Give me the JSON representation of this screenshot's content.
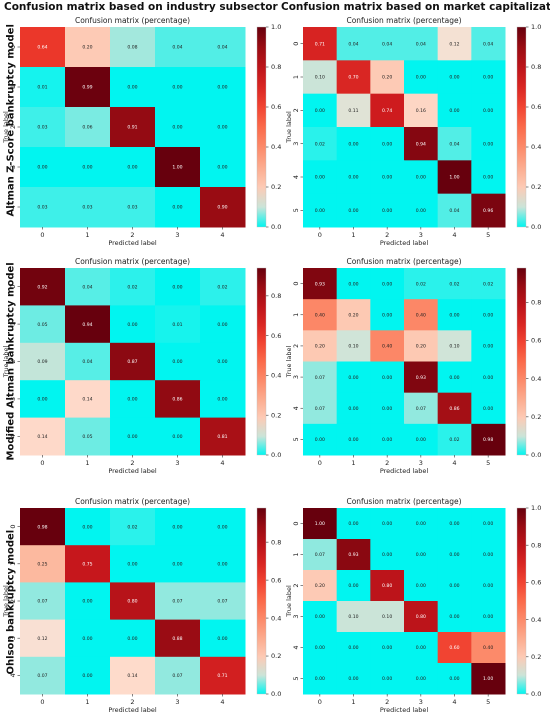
{
  "headers": {
    "left": "Confusion matrix based on industry subsector",
    "right": "Confusion matrix based on market capitalization",
    "rows": [
      "Altman Z-Score bankruptcy model",
      "Modified Altman bankruptcy model",
      "Ohlson bankruptcy model"
    ]
  },
  "chart_data": [
    {
      "type": "heatmap",
      "title": "Confusion matrix (percentage)",
      "xlabel": "Predicted label",
      "ylabel": "True label",
      "labels": [
        "0",
        "1",
        "2",
        "3",
        "4"
      ],
      "colorbar": {
        "vmin": 0,
        "vmax": 1.0,
        "ticks": [
          "0.0",
          "0.2",
          "0.4",
          "0.6",
          "0.8",
          "1.0"
        ]
      },
      "matrix": [
        [
          "0.64",
          "0.20",
          "0.08",
          "0.04",
          "0.04"
        ],
        [
          "0.01",
          "0.99",
          "0.00",
          "0.00",
          "0.00"
        ],
        [
          "0.03",
          "0.06",
          "0.91",
          "0.00",
          "0.00"
        ],
        [
          "0.00",
          "0.00",
          "0.00",
          "1.00",
          "0.00"
        ],
        [
          "0.03",
          "0.03",
          "0.03",
          "0.00",
          "0.90"
        ]
      ]
    },
    {
      "type": "heatmap",
      "title": "Confusion matrix (percentage)",
      "xlabel": "Predicted label",
      "ylabel": "True label",
      "labels": [
        "0",
        "1",
        "2",
        "3",
        "4",
        "5"
      ],
      "colorbar": {
        "vmin": 0,
        "vmax": 1.0,
        "ticks": [
          "0.0",
          "0.2",
          "0.4",
          "0.6",
          "0.8",
          "1.0"
        ]
      },
      "matrix": [
        [
          "0.71",
          "0.04",
          "0.04",
          "0.04",
          "0.12",
          "0.04"
        ],
        [
          "0.10",
          "0.70",
          "0.20",
          "0.00",
          "0.00",
          "0.00"
        ],
        [
          "0.00",
          "0.11",
          "0.74",
          "0.16",
          "0.00",
          "0.00"
        ],
        [
          "0.02",
          "0.00",
          "0.00",
          "0.94",
          "0.04",
          "0.00"
        ],
        [
          "0.00",
          "0.00",
          "0.00",
          "0.00",
          "1.00",
          "0.00"
        ],
        [
          "0.00",
          "0.00",
          "0.00",
          "0.00",
          "0.04",
          "0.96"
        ]
      ]
    },
    {
      "type": "heatmap",
      "title": "Confusion matrix (percentage)",
      "xlabel": "Predicted label",
      "ylabel": "True label",
      "labels": [
        "0",
        "1",
        "2",
        "3",
        "4"
      ],
      "colorbar": {
        "vmin": 0,
        "vmax": 0.94,
        "ticks": [
          "0.0",
          "0.2",
          "0.4",
          "0.6",
          "0.8"
        ]
      },
      "matrix": [
        [
          "0.92",
          "0.04",
          "0.02",
          "0.00",
          "0.02"
        ],
        [
          "0.05",
          "0.94",
          "0.00",
          "0.01",
          "0.00"
        ],
        [
          "0.09",
          "0.04",
          "0.87",
          "0.00",
          "0.00"
        ],
        [
          "0.00",
          "0.14",
          "0.00",
          "0.86",
          "0.00"
        ],
        [
          "0.14",
          "0.05",
          "0.00",
          "0.00",
          "0.81"
        ]
      ]
    },
    {
      "type": "heatmap",
      "title": "Confusion matrix (percentage)",
      "xlabel": "Predicted label",
      "ylabel": "True label",
      "labels": [
        "0",
        "1",
        "2",
        "3",
        "4",
        "5"
      ],
      "colorbar": {
        "vmin": 0,
        "vmax": 0.98,
        "ticks": [
          "0.0",
          "0.2",
          "0.4",
          "0.6",
          "0.8"
        ]
      },
      "matrix": [
        [
          "0.93",
          "0.00",
          "0.00",
          "0.02",
          "0.02",
          "0.02"
        ],
        [
          "0.40",
          "0.20",
          "0.00",
          "0.40",
          "0.00",
          "0.00"
        ],
        [
          "0.20",
          "0.10",
          "0.40",
          "0.20",
          "0.10",
          "0.00"
        ],
        [
          "0.07",
          "0.00",
          "0.00",
          "0.93",
          "0.00",
          "0.00"
        ],
        [
          "0.07",
          "0.00",
          "0.00",
          "0.07",
          "0.86",
          "0.00"
        ],
        [
          "0.00",
          "0.00",
          "0.00",
          "0.00",
          "0.02",
          "0.98"
        ]
      ]
    },
    {
      "type": "heatmap",
      "title": "Confusion matrix (percentage)",
      "xlabel": "Predicted label",
      "ylabel": "True label",
      "labels": [
        "0",
        "1",
        "2",
        "3",
        "4"
      ],
      "colorbar": {
        "vmin": 0,
        "vmax": 0.98,
        "ticks": [
          "0.0",
          "0.2",
          "0.4",
          "0.6",
          "0.8"
        ]
      },
      "matrix": [
        [
          "0.98",
          "0.00",
          "0.02",
          "0.00",
          "0.00"
        ],
        [
          "0.25",
          "0.75",
          "0.00",
          "0.00",
          "0.00"
        ],
        [
          "0.07",
          "0.00",
          "0.80",
          "0.07",
          "0.07"
        ],
        [
          "0.12",
          "0.00",
          "0.00",
          "0.88",
          "0.00"
        ],
        [
          "0.07",
          "0.00",
          "0.14",
          "0.07",
          "0.71"
        ]
      ]
    },
    {
      "type": "heatmap",
      "title": "Confusion matrix (percentage)",
      "xlabel": "Predicted label",
      "ylabel": "True label",
      "labels": [
        "0",
        "1",
        "2",
        "3",
        "4",
        "5"
      ],
      "colorbar": {
        "vmin": 0,
        "vmax": 1.0,
        "ticks": [
          "0.0",
          "0.2",
          "0.4",
          "0.6",
          "0.8",
          "1.0"
        ]
      },
      "matrix": [
        [
          "1.00",
          "0.00",
          "0.00",
          "0.00",
          "0.00",
          "0.00"
        ],
        [
          "0.07",
          "0.93",
          "0.00",
          "0.00",
          "0.00",
          "0.00"
        ],
        [
          "0.20",
          "0.00",
          "0.80",
          "0.00",
          "0.00",
          "0.00"
        ],
        [
          "0.00",
          "0.10",
          "0.10",
          "0.80",
          "0.00",
          "0.00"
        ],
        [
          "0.00",
          "0.00",
          "0.00",
          "0.00",
          "0.60",
          "0.40"
        ],
        [
          "0.00",
          "0.00",
          "0.00",
          "0.00",
          "0.00",
          "1.00"
        ]
      ]
    }
  ]
}
